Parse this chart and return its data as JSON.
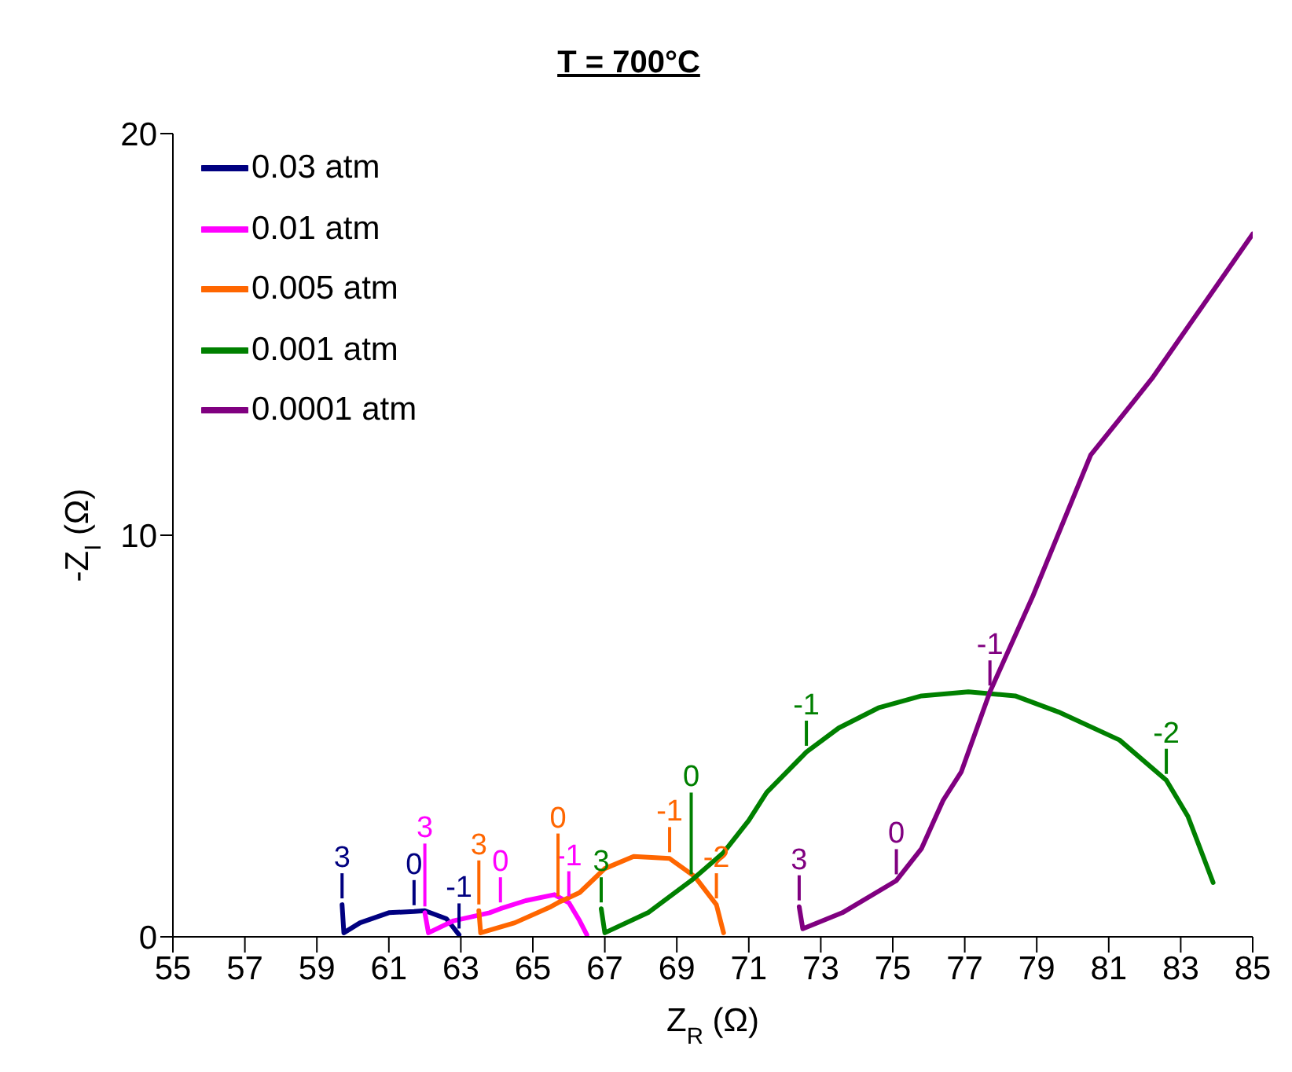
{
  "chart_data": {
    "type": "line",
    "title": "T = 700°C",
    "xlabel": "Z$_{R}$ (Ω)",
    "ylabel": "-Z$_{I}$ (Ω)",
    "xlim": [
      55,
      85
    ],
    "xticks": [
      55,
      57,
      59,
      61,
      63,
      65,
      67,
      69,
      71,
      73,
      75,
      77,
      79,
      81,
      83,
      85
    ],
    "ylim": [
      0,
      20
    ],
    "yticks": [
      0,
      10,
      20
    ],
    "legend": "top left",
    "marker": "none",
    "line_style": "solid",
    "series": [
      {
        "name": "0.03 atm",
        "color": "#000080",
        "x": [
          59.7,
          59.75,
          60.2,
          61,
          61.7,
          62,
          62.6,
          62.95
        ],
        "values": [
          0.8,
          0.1,
          0.35,
          0.6,
          0.63,
          0.65,
          0.45,
          0.05
        ]
      },
      {
        "name": "0.01 atm",
        "color": "#ff00ff",
        "x": [
          62.0,
          62.1,
          62.8,
          63.8,
          64.1,
          64.8,
          65.6,
          66.0,
          66.3,
          66.5
        ],
        "values": [
          0.6,
          0.1,
          0.4,
          0.6,
          0.7,
          0.9,
          1.05,
          0.85,
          0.4,
          0.05
        ]
      },
      {
        "name": "0.005 atm",
        "color": "#ff6600",
        "x": [
          63.5,
          63.55,
          64.5,
          65.5,
          65.7,
          66.3,
          67,
          67.8,
          68.8,
          69.5,
          70.1,
          70.3
        ],
        "values": [
          0.65,
          0.1,
          0.35,
          0.75,
          0.85,
          1.1,
          1.7,
          2.0,
          1.95,
          1.5,
          0.8,
          0.1
        ]
      },
      {
        "name": "0.001 atm",
        "color": "#008000",
        "x": [
          66.9,
          67.0,
          68.2,
          69.4,
          70.3,
          71.0,
          71.5,
          72.6,
          73.5,
          74.6,
          75.8,
          77.1,
          78.4,
          79.6,
          81.3,
          82.6,
          83.2,
          83.9
        ],
        "values": [
          0.7,
          0.1,
          0.6,
          1.4,
          2.1,
          2.9,
          3.6,
          4.6,
          5.2,
          5.7,
          6.0,
          6.1,
          6.0,
          5.6,
          4.9,
          3.9,
          3.0,
          1.35
        ]
      },
      {
        "name": "0.0001 atm",
        "color": "#800080",
        "x": [
          72.4,
          72.5,
          73.6,
          75.1,
          75.8,
          76.4,
          76.9,
          77.7,
          78.9,
          80.5,
          81.4,
          82.2,
          85
        ],
        "values": [
          0.75,
          0.2,
          0.6,
          1.4,
          2.2,
          3.4,
          4.1,
          6.1,
          8.5,
          12.0,
          13.0,
          13.9,
          17.5
        ]
      }
    ],
    "annotations": [
      {
        "text": "3",
        "x": 59.7,
        "y": 0.8
      },
      {
        "text": "0",
        "x": 61.7,
        "y": 0.63
      },
      {
        "text": "-1",
        "x": 62.95,
        "y": 0.05
      },
      {
        "text": "3",
        "x": 62.0,
        "y": 0.6
      },
      {
        "text": "0",
        "x": 64.1,
        "y": 0.7
      },
      {
        "text": "-1",
        "x": 66.0,
        "y": 0.85
      },
      {
        "text": "3",
        "x": 63.5,
        "y": 0.65
      },
      {
        "text": "0",
        "x": 65.7,
        "y": 0.85
      },
      {
        "text": "-1",
        "x": 68.8,
        "y": 1.95
      },
      {
        "text": "-2",
        "x": 70.1,
        "y": 0.8
      },
      {
        "text": "3",
        "x": 66.9,
        "y": 0.7
      },
      {
        "text": "0",
        "x": 69.4,
        "y": 1.4
      },
      {
        "text": "-1",
        "x": 72.6,
        "y": 4.6
      },
      {
        "text": "-2",
        "x": 82.6,
        "y": 3.9
      },
      {
        "text": "3",
        "x": 72.4,
        "y": 0.75
      },
      {
        "text": "0",
        "x": 75.1,
        "y": 1.4
      },
      {
        "text": "-1",
        "x": 77.7,
        "y": 6.1
      }
    ]
  }
}
